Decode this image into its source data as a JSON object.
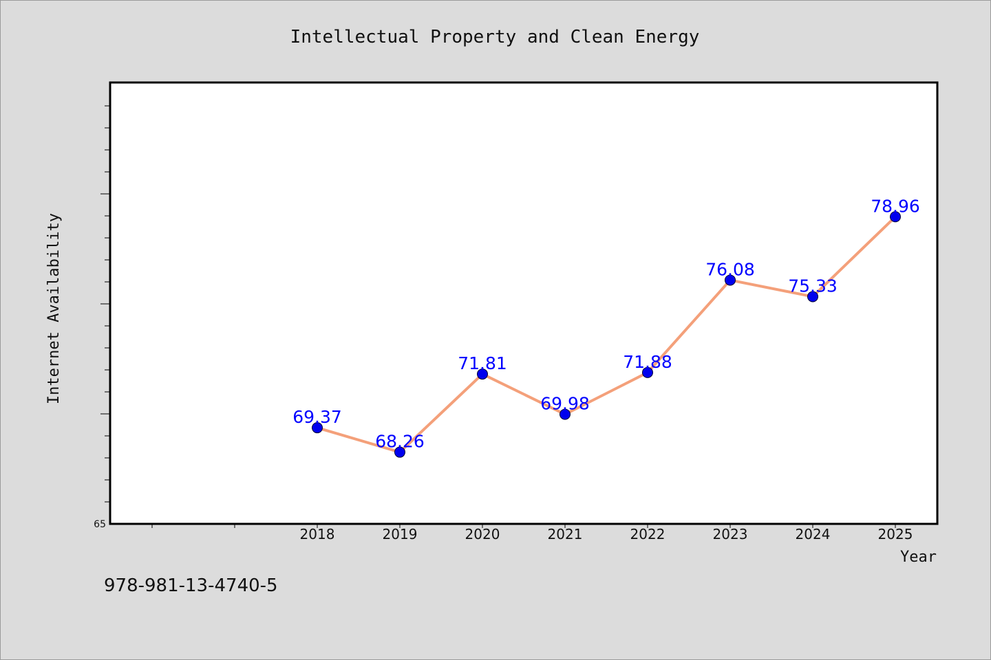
{
  "chart_data": {
    "type": "line",
    "title": "Intellectual Property and Clean Energy",
    "xlabel": "Year",
    "ylabel": "Internet Availability",
    "x": [
      "2018",
      "2019",
      "2020",
      "2021",
      "2022",
      "2023",
      "2024",
      "2025"
    ],
    "series": [
      {
        "values": [
          69.37,
          68.26,
          71.81,
          69.98,
          71.88,
          76.08,
          75.33,
          78.96
        ],
        "data_labels": [
          "69.37",
          "68.26",
          "71.81",
          "69.98",
          "71.88",
          "76.08",
          "75.33",
          "78.96"
        ]
      }
    ],
    "ylim": [
      65,
      85
    ],
    "ytick_labels": [
      "65"
    ],
    "grid": false,
    "colors": {
      "line": "#f4a07a",
      "marker": "#0000ee",
      "data_label": "#0000ff",
      "plot_background": "#ffffff",
      "figure_background": "#dcdcdc"
    }
  },
  "footer": {
    "isbn": "978-981-13-4740-5"
  }
}
